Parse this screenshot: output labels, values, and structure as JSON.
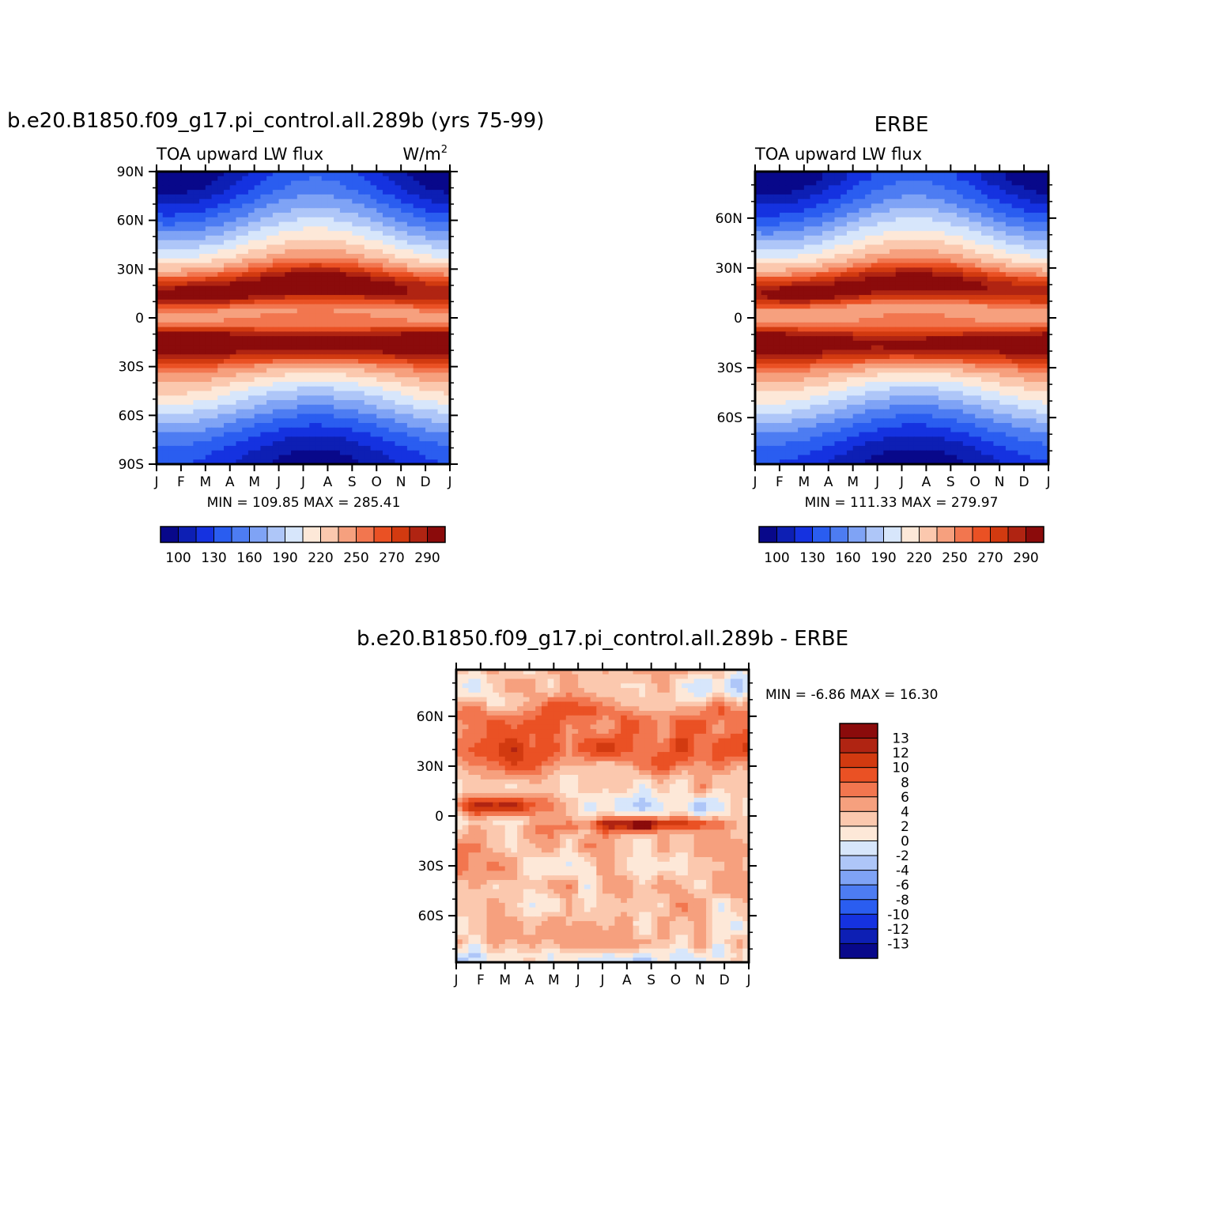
{
  "palette": {
    "abs": [
      "#08088a",
      "#0d1fb4",
      "#1532e0",
      "#2a5df0",
      "#4d7cf2",
      "#7fa3f5",
      "#aec6f8",
      "#d7e6fb",
      "#fde8d8",
      "#fbc8ae",
      "#f6a07e",
      "#f2764f",
      "#ea5124",
      "#d23a10",
      "#b02412",
      "#8b0b0b"
    ],
    "diff": [
      "#08088a",
      "#0d1fb4",
      "#1532e0",
      "#2a5df0",
      "#4d7cf2",
      "#7fa3f5",
      "#aec6f8",
      "#d7e6fb",
      "#fde8d8",
      "#fbc8ae",
      "#f6a07e",
      "#f2764f",
      "#ea5124",
      "#d23a10",
      "#b02412",
      "#8b0b0b"
    ]
  },
  "chart_data": [
    {
      "type": "heatmap",
      "title": "b.e20.B1850.f09_g17.pi_control.all.289b (yrs 75-99)",
      "left_label": "TOA upward LW flux",
      "right_label": "W/m",
      "right_label_sup": "2",
      "x_ticks": [
        "J",
        "F",
        "M",
        "A",
        "M",
        "J",
        "J",
        "A",
        "S",
        "O",
        "N",
        "D",
        "J"
      ],
      "y_ticks": [
        "90N",
        "60N",
        "30N",
        "0",
        "30S",
        "60S",
        "90S"
      ],
      "stats": "MIN =  109.85 MAX =  285.41",
      "min": 109.85,
      "max": 285.41,
      "colorbar": {
        "levels": [
          100,
          115,
          130,
          145,
          160,
          175,
          190,
          205,
          220,
          235,
          250,
          260,
          270,
          280,
          290
        ],
        "labels": [
          "100",
          "130",
          "160",
          "190",
          "220",
          "250",
          "270",
          "290"
        ]
      }
    },
    {
      "type": "heatmap",
      "title": "ERBE",
      "left_label": "TOA upward LW flux",
      "x_ticks": [
        "J",
        "F",
        "M",
        "A",
        "M",
        "J",
        "J",
        "A",
        "S",
        "O",
        "N",
        "D",
        "J"
      ],
      "y_ticks": [
        "60N",
        "30N",
        "0",
        "30S",
        "60S"
      ],
      "stats": "MIN =  111.33 MAX =  279.97",
      "min": 111.33,
      "max": 279.97,
      "colorbar": {
        "levels": [
          100,
          115,
          130,
          145,
          160,
          175,
          190,
          205,
          220,
          235,
          250,
          260,
          270,
          280,
          290
        ],
        "labels": [
          "100",
          "130",
          "160",
          "190",
          "220",
          "250",
          "270",
          "290"
        ]
      }
    },
    {
      "type": "heatmap",
      "title": "b.e20.B1850.f09_g17.pi_control.all.289b - ERBE",
      "x_ticks": [
        "J",
        "F",
        "M",
        "A",
        "M",
        "J",
        "J",
        "A",
        "S",
        "O",
        "N",
        "D",
        "J"
      ],
      "y_ticks": [
        "60N",
        "30N",
        "0",
        "30S",
        "60S"
      ],
      "stats": "MIN =   -6.86 MAX =   16.30",
      "min": -6.86,
      "max": 16.3,
      "colorbar": {
        "levels": [
          -13,
          -12,
          -10,
          -8,
          -6,
          -4,
          -2,
          0,
          2,
          4,
          6,
          8,
          10,
          12,
          13
        ],
        "labels": [
          "13",
          "12",
          "10",
          "8",
          "6",
          "4",
          "2",
          "0",
          "-2",
          "-4",
          "-6",
          "-8",
          "-10",
          "-12",
          "-13"
        ]
      }
    }
  ]
}
